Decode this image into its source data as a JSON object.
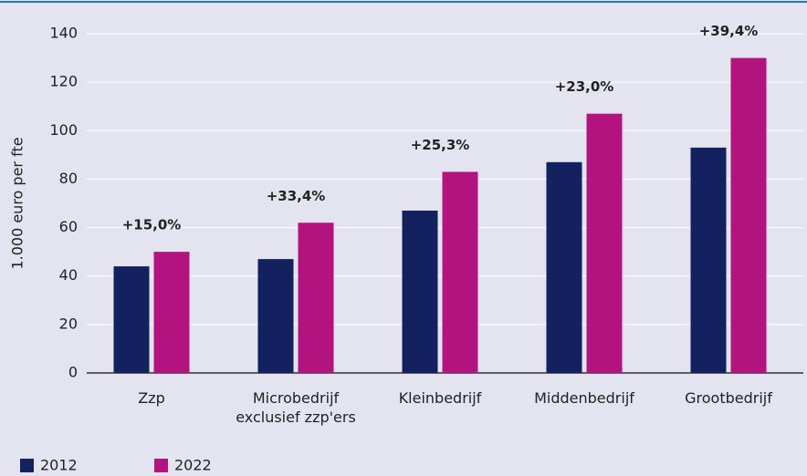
{
  "chart_data": {
    "type": "bar",
    "y_label": "1.000 euro per fte",
    "categories": [
      "Zzp",
      "Microbedrijf exclusief zzp'ers",
      "Kleinbedrijf",
      "Middenbedrijf",
      "Grootbedrijf"
    ],
    "series": [
      {
        "name": "2012",
        "color": "#13215e",
        "values": [
          44,
          47,
          67,
          87,
          93
        ]
      },
      {
        "name": "2022",
        "color": "#b3137f",
        "values": [
          50,
          62,
          83,
          107,
          130
        ]
      }
    ],
    "annotations": [
      "+15,0%",
      "+33,4%",
      "+25,3%",
      "+23,0%",
      "+39,4%"
    ],
    "ylim": [
      0,
      140
    ],
    "yticks": [
      0,
      20,
      40,
      60,
      80,
      100,
      120,
      140
    ],
    "grid": true
  }
}
